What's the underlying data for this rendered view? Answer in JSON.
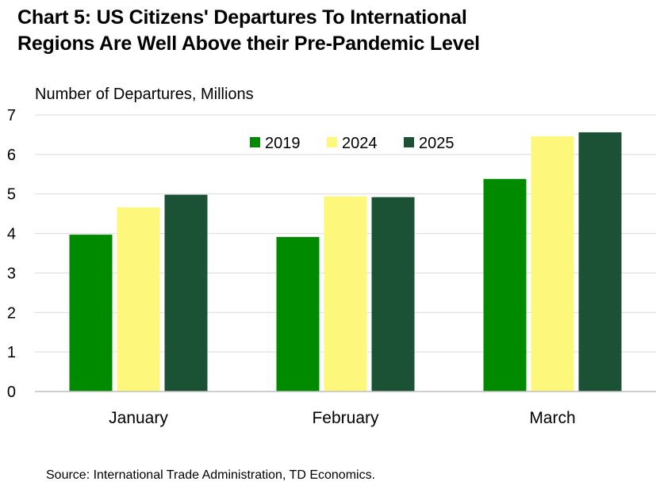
{
  "chart_data": {
    "type": "bar",
    "title_lines": [
      "Chart 5: US Citizens' Departures To International",
      "Regions Are Well Above their Pre-Pandemic Level"
    ],
    "ylabel": "Number of Departures, Millions",
    "xlabel": "",
    "categories": [
      "January",
      "February",
      "March"
    ],
    "series": [
      {
        "name": "2019",
        "color": "#008A00",
        "values": [
          3.97,
          3.91,
          5.38
        ]
      },
      {
        "name": "2024",
        "color": "#FDF77B",
        "values": [
          4.66,
          4.94,
          6.46
        ]
      },
      {
        "name": "2025",
        "color": "#1B5236",
        "values": [
          4.98,
          4.92,
          6.56
        ]
      }
    ],
    "ylim": [
      0,
      7
    ],
    "yticks": [
      0,
      1,
      2,
      3,
      4,
      5,
      6,
      7
    ],
    "grid": true,
    "legend_position": "top-center",
    "source": "Source: International Trade Administration, TD Economics."
  }
}
